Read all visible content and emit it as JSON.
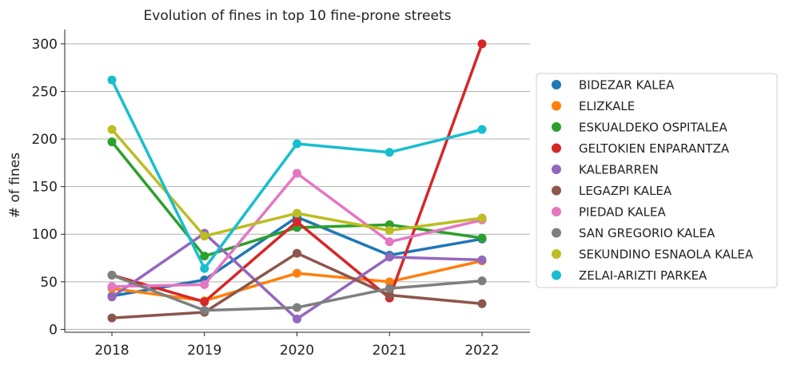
{
  "chart_data": {
    "type": "line",
    "title": "Evolution of fines in top 10 fine-prone streets",
    "xlabel": "",
    "ylabel": "# of fines",
    "categories": [
      "2018",
      "2019",
      "2020",
      "2021",
      "2022"
    ],
    "ylim": [
      -3,
      315
    ],
    "yticks": [
      0,
      50,
      100,
      150,
      200,
      250,
      300
    ],
    "grid": "horizontal",
    "legend_position": "right",
    "series": [
      {
        "name": "BIDEZAR KALEA",
        "color": "#1f77b4",
        "values": [
          35,
          52,
          118,
          78,
          95
        ]
      },
      {
        "name": "ELIZKALE",
        "color": "#ff7f0e",
        "values": [
          43,
          30,
          59,
          50,
          72
        ]
      },
      {
        "name": "ESKUALDEKO OSPITALEA",
        "color": "#2ca02c",
        "values": [
          197,
          77,
          107,
          110,
          96
        ]
      },
      {
        "name": "GELTOKIEN ENPARANTZA",
        "color": "#d62728",
        "values": [
          57,
          29,
          113,
          33,
          300
        ]
      },
      {
        "name": "KALEBARREN",
        "color": "#9467bd",
        "values": [
          34,
          101,
          11,
          76,
          73
        ]
      },
      {
        "name": "LEGAZPI KALEA",
        "color": "#8c564b",
        "values": [
          12,
          18,
          80,
          36,
          27
        ]
      },
      {
        "name": "PIEDAD KALEA",
        "color": "#e377c2",
        "values": [
          45,
          47,
          164,
          92,
          115
        ]
      },
      {
        "name": "SAN GREGORIO KALEA",
        "color": "#7f7f7f",
        "values": [
          57,
          20,
          23,
          43,
          51
        ]
      },
      {
        "name": "SEKUNDINO ESNAOLA KALEA",
        "color": "#bcbd22",
        "values": [
          210,
          98,
          122,
          104,
          117
        ]
      },
      {
        "name": "ZELAI-ARIZTI PARKEA",
        "color": "#17becf",
        "values": [
          262,
          64,
          195,
          186,
          210
        ]
      }
    ]
  }
}
